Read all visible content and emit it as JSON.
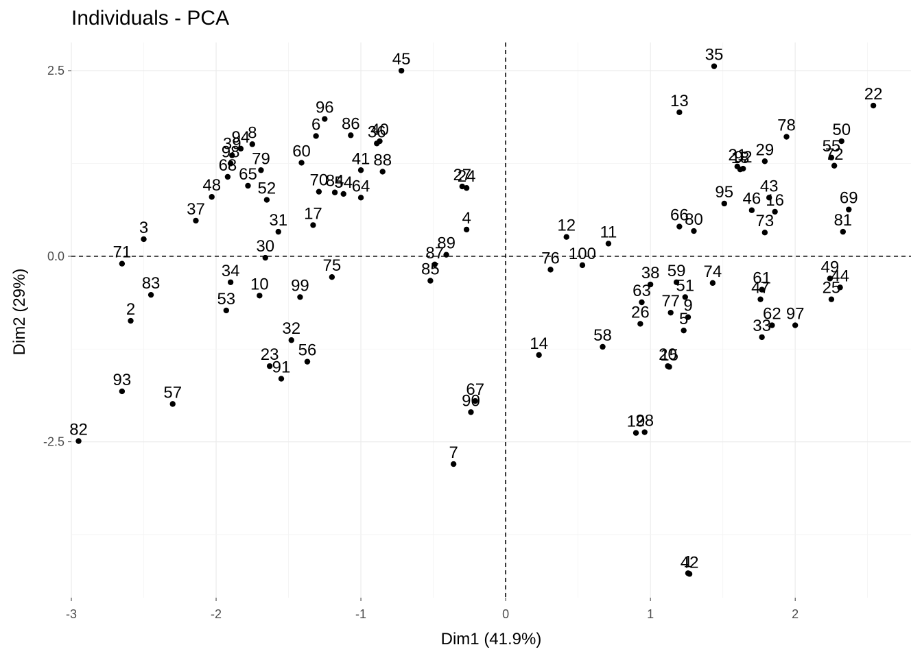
{
  "chart_data": {
    "type": "scatter",
    "title": "Individuals - PCA",
    "xlabel": "Dim1 (41.9%)",
    "ylabel": "Dim2 (29%)",
    "xlim": [
      -3.0,
      2.8
    ],
    "ylim": [
      -4.6,
      2.88
    ],
    "xticks": [
      -3,
      -2,
      -1,
      0,
      1,
      2
    ],
    "yticks": [
      -2.5,
      0.0,
      2.5
    ],
    "ytick_labels": [
      "-2.5",
      "0.0",
      "2.5"
    ],
    "reference_lines": {
      "x": 0,
      "y": 0,
      "style": "dashed"
    },
    "grid": true,
    "point_color": "#000000",
    "points": [
      {
        "label": "1",
        "x": 1.26,
        "y": -4.27
      },
      {
        "label": "2",
        "x": -2.59,
        "y": -0.87
      },
      {
        "label": "3",
        "x": -2.5,
        "y": 0.23
      },
      {
        "label": "4",
        "x": -0.27,
        "y": 0.36
      },
      {
        "label": "5",
        "x": 1.23,
        "y": -1.0
      },
      {
        "label": "6",
        "x": -1.31,
        "y": 1.62
      },
      {
        "label": "7",
        "x": -0.36,
        "y": -2.8
      },
      {
        "label": "8",
        "x": -1.75,
        "y": 1.51
      },
      {
        "label": "9",
        "x": 1.26,
        "y": -0.82
      },
      {
        "label": "10",
        "x": -1.7,
        "y": -0.53
      },
      {
        "label": "11",
        "x": 0.71,
        "y": 0.17
      },
      {
        "label": "12",
        "x": 0.42,
        "y": 0.26
      },
      {
        "label": "13",
        "x": 1.2,
        "y": 1.94
      },
      {
        "label": "14",
        "x": 0.23,
        "y": -1.33
      },
      {
        "label": "15",
        "x": 1.13,
        "y": -1.49
      },
      {
        "label": "16",
        "x": 1.86,
        "y": 0.6
      },
      {
        "label": "17",
        "x": -1.33,
        "y": 0.42
      },
      {
        "label": "18",
        "x": 1.62,
        "y": 1.17
      },
      {
        "label": "19",
        "x": 0.9,
        "y": -2.38
      },
      {
        "label": "20",
        "x": 1.12,
        "y": -1.48
      },
      {
        "label": "21",
        "x": 1.6,
        "y": 1.21
      },
      {
        "label": "22",
        "x": 2.54,
        "y": 2.03
      },
      {
        "label": "23",
        "x": -1.63,
        "y": -1.48
      },
      {
        "label": "24",
        "x": -0.27,
        "y": 0.92
      },
      {
        "label": "25",
        "x": 2.25,
        "y": -0.58
      },
      {
        "label": "26",
        "x": 0.93,
        "y": -0.91
      },
      {
        "label": "27",
        "x": -0.3,
        "y": 0.94
      },
      {
        "label": "28",
        "x": 0.96,
        "y": -2.37
      },
      {
        "label": "29",
        "x": 1.79,
        "y": 1.28
      },
      {
        "label": "30",
        "x": -1.66,
        "y": -0.02
      },
      {
        "label": "31",
        "x": -1.57,
        "y": 0.33
      },
      {
        "label": "33",
        "x": 1.77,
        "y": -1.09
      },
      {
        "label": "34",
        "x": -1.9,
        "y": -0.35
      },
      {
        "label": "35",
        "x": 1.44,
        "y": 2.56
      },
      {
        "label": "36",
        "x": -0.89,
        "y": 1.52
      },
      {
        "label": "37",
        "x": -2.14,
        "y": 0.48
      },
      {
        "label": "38",
        "x": 1.0,
        "y": -0.38
      },
      {
        "label": "39",
        "x": -1.89,
        "y": 1.36
      },
      {
        "label": "40",
        "x": -0.87,
        "y": 1.55
      },
      {
        "label": "41",
        "x": -1.0,
        "y": 1.16
      },
      {
        "label": "42",
        "x": 1.27,
        "y": -4.28
      },
      {
        "label": "43",
        "x": 1.82,
        "y": 0.79
      },
      {
        "label": "44",
        "x": 2.31,
        "y": -0.42
      },
      {
        "label": "45",
        "x": -0.72,
        "y": 2.5
      },
      {
        "label": "46",
        "x": 1.7,
        "y": 0.62
      },
      {
        "label": "47",
        "x": 1.76,
        "y": -0.58
      },
      {
        "label": "48",
        "x": -2.03,
        "y": 0.8
      },
      {
        "label": "49",
        "x": 2.24,
        "y": -0.3
      },
      {
        "label": "50",
        "x": 2.32,
        "y": 1.55
      },
      {
        "label": "51",
        "x": 1.24,
        "y": -0.55
      },
      {
        "label": "52",
        "x": -1.65,
        "y": 0.76
      },
      {
        "label": "53",
        "x": -1.93,
        "y": -0.73
      },
      {
        "label": "54",
        "x": -1.12,
        "y": 0.84
      },
      {
        "label": "55",
        "x": 2.25,
        "y": 1.33
      },
      {
        "label": "56",
        "x": -1.37,
        "y": -1.42
      },
      {
        "label": "57",
        "x": -2.3,
        "y": -1.99
      },
      {
        "label": "58",
        "x": 0.67,
        "y": -1.22
      },
      {
        "label": "59",
        "x": 1.18,
        "y": -0.35
      },
      {
        "label": "60",
        "x": -1.41,
        "y": 1.26
      },
      {
        "label": "61",
        "x": 1.77,
        "y": -0.45
      },
      {
        "label": "62",
        "x": 1.84,
        "y": -0.93
      },
      {
        "label": "63",
        "x": 0.94,
        "y": -0.62
      },
      {
        "label": "64",
        "x": -1.0,
        "y": 0.79
      },
      {
        "label": "65",
        "x": -1.78,
        "y": 0.95
      },
      {
        "label": "66",
        "x": 1.2,
        "y": 0.4
      },
      {
        "label": "67",
        "x": -0.21,
        "y": -1.95
      },
      {
        "label": "68",
        "x": -1.92,
        "y": 1.07
      },
      {
        "label": "69",
        "x": 2.37,
        "y": 0.63
      },
      {
        "label": "70",
        "x": -1.29,
        "y": 0.87
      },
      {
        "label": "71",
        "x": -2.65,
        "y": -0.1
      },
      {
        "label": "72",
        "x": 2.27,
        "y": 1.22
      },
      {
        "label": "73",
        "x": 1.79,
        "y": 0.32
      },
      {
        "label": "74",
        "x": 1.43,
        "y": -0.36
      },
      {
        "label": "75",
        "x": -1.2,
        "y": -0.28
      },
      {
        "label": "76",
        "x": 0.31,
        "y": -0.18
      },
      {
        "label": "77",
        "x": 1.14,
        "y": -0.76
      },
      {
        "label": "78",
        "x": 1.94,
        "y": 1.61
      },
      {
        "label": "79",
        "x": -1.69,
        "y": 1.16
      },
      {
        "label": "80",
        "x": 1.3,
        "y": 0.34
      },
      {
        "label": "81",
        "x": 2.33,
        "y": 0.33
      },
      {
        "label": "82",
        "x": -2.95,
        "y": -2.49
      },
      {
        "label": "83",
        "x": -2.45,
        "y": -0.52
      },
      {
        "label": "84",
        "x": -1.18,
        "y": 0.86
      },
      {
        "label": "85",
        "x": -0.52,
        "y": -0.33
      },
      {
        "label": "86",
        "x": -1.07,
        "y": 1.63
      },
      {
        "label": "87",
        "x": -0.49,
        "y": -0.11
      },
      {
        "label": "88",
        "x": -0.85,
        "y": 1.14
      },
      {
        "label": "89",
        "x": -0.41,
        "y": 0.02
      },
      {
        "label": "90",
        "x": -0.24,
        "y": -2.1
      },
      {
        "label": "91",
        "x": -1.55,
        "y": -1.65
      },
      {
        "label": "92",
        "x": 1.64,
        "y": 1.18
      },
      {
        "label": "93",
        "x": -2.65,
        "y": -1.82
      },
      {
        "label": "94",
        "x": -1.83,
        "y": 1.45
      },
      {
        "label": "95",
        "x": 1.51,
        "y": 0.71
      },
      {
        "label": "96",
        "x": -1.25,
        "y": 1.85
      },
      {
        "label": "97",
        "x": 2.0,
        "y": -0.93
      },
      {
        "label": "98",
        "x": -1.9,
        "y": 1.25
      },
      {
        "label": "99",
        "x": -1.42,
        "y": -0.55
      },
      {
        "label": "100",
        "x": 0.53,
        "y": -0.12
      },
      {
        "label": "32",
        "x": -1.48,
        "y": -1.13
      }
    ]
  }
}
